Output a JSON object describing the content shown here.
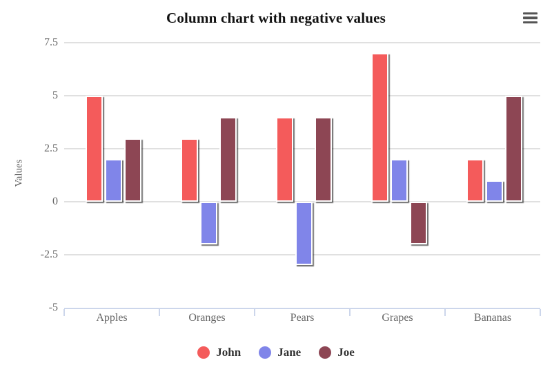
{
  "title": "Column chart with negative values",
  "toolbar": {
    "menu_icon": "hamburger-menu"
  },
  "chart_data": {
    "type": "bar",
    "title": "Column chart with negative values",
    "categories": [
      "Apples",
      "Oranges",
      "Pears",
      "Grapes",
      "Bananas"
    ],
    "series": [
      {
        "name": "John",
        "color": "#f45b5b",
        "values": [
          5,
          3,
          4,
          7,
          2
        ]
      },
      {
        "name": "Jane",
        "color": "#8085e9",
        "values": [
          2,
          -2,
          -3,
          2,
          1
        ]
      },
      {
        "name": "Joe",
        "color": "#8d4654",
        "values": [
          3,
          4,
          4,
          -2,
          5
        ]
      }
    ],
    "xlabel": "",
    "ylabel": "Values",
    "ylim": [
      -5,
      7.5
    ],
    "yticks": [
      7.5,
      5,
      2.5,
      0,
      -2.5,
      -5
    ],
    "grid": true,
    "legend_position": "bottom"
  },
  "colors": {
    "background": "#ffffff",
    "grid_line": "#e0e0e0",
    "axis_line": "#ccd6eb",
    "tick_label": "#666666",
    "title_text": "#111111",
    "legend_text": "#333333"
  }
}
